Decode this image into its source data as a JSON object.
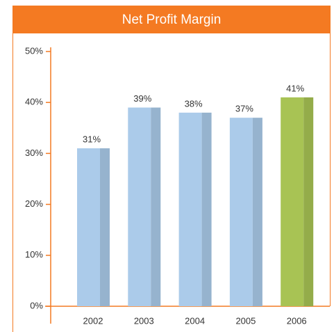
{
  "chart_data": {
    "type": "bar",
    "title": "Net Profit Margin",
    "categories": [
      "2002",
      "2003",
      "2004",
      "2005",
      "2006"
    ],
    "values": [
      31,
      39,
      38,
      37,
      41
    ],
    "value_labels": [
      "31%",
      "39%",
      "38%",
      "37%",
      "41%"
    ],
    "colors": [
      "#abcbea",
      "#abcbea",
      "#abcbea",
      "#abcbea",
      "#a8c354"
    ],
    "ylim": [
      0,
      50
    ],
    "yticks": [
      {
        "value": 0,
        "label": "0%"
      },
      {
        "value": 10,
        "label": "10%"
      },
      {
        "value": 20,
        "label": "20%"
      },
      {
        "value": 30,
        "label": "30%"
      },
      {
        "value": 40,
        "label": "40%"
      },
      {
        "value": 50,
        "label": "50%"
      }
    ],
    "accent": "#f47a22"
  }
}
